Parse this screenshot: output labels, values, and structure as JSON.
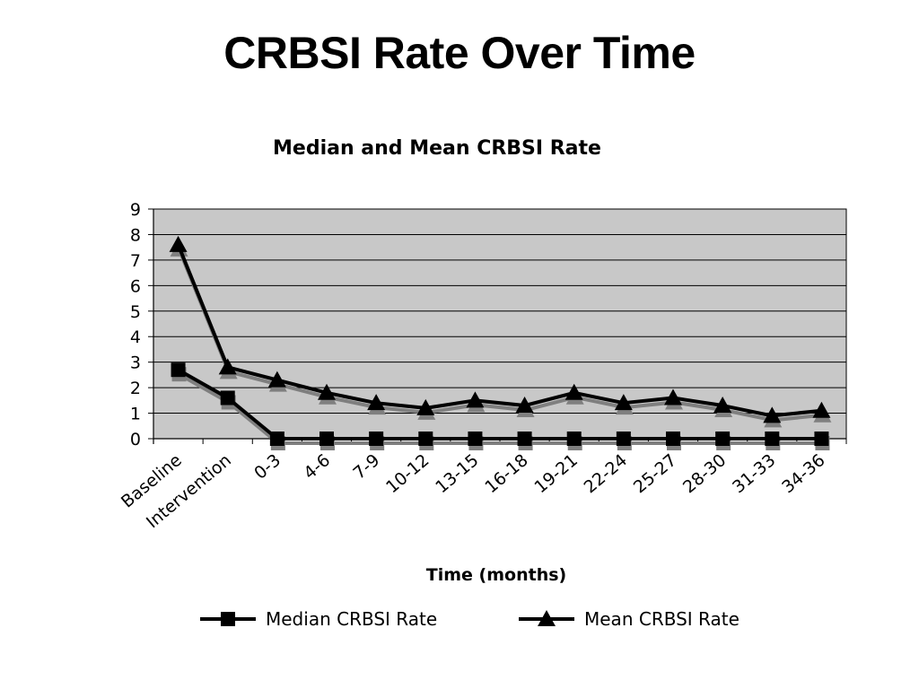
{
  "slide": {
    "title": "CRBSI Rate Over Time"
  },
  "chart_data": {
    "type": "line",
    "title": "Median and Mean CRBSI Rate",
    "xlabel": "Time (months)",
    "ylabel": "",
    "ylim": [
      0,
      9
    ],
    "yticks": [
      0,
      1,
      2,
      3,
      4,
      5,
      6,
      7,
      8,
      9
    ],
    "grid": true,
    "legend_position": "bottom",
    "categories": [
      "Baseline",
      "Intervention",
      "0-3",
      "4-6",
      "7-9",
      "10-12",
      "13-15",
      "16-18",
      "19-21",
      "22-24",
      "25-27",
      "28-30",
      "31-33",
      "34-36"
    ],
    "series": [
      {
        "name": "Median CRBSI Rate",
        "marker": "square",
        "values": [
          2.7,
          1.6,
          0,
          0,
          0,
          0,
          0,
          0,
          0,
          0,
          0,
          0,
          0,
          0
        ]
      },
      {
        "name": "Mean CRBSI Rate",
        "marker": "triangle",
        "values": [
          7.6,
          2.8,
          2.3,
          1.8,
          1.4,
          1.2,
          1.5,
          1.3,
          1.8,
          1.4,
          1.6,
          1.3,
          0.9,
          1.1
        ]
      }
    ],
    "colors": {
      "plot_background": "#c8c8c8",
      "line": "#000000",
      "shadow": "#7f7f7f"
    }
  }
}
